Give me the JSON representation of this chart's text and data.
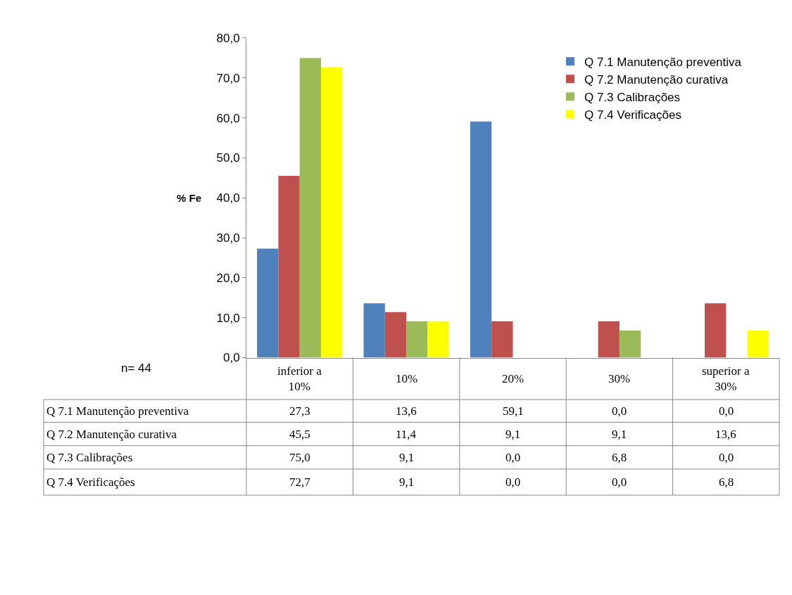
{
  "chart_data": {
    "type": "bar",
    "ylabel": "% Fe",
    "categories": [
      "inferior a 10%",
      "10%",
      "20%",
      "30%",
      "superior a 30%"
    ],
    "series": [
      {
        "name": "Q 7.1 Manutenção preventiva",
        "color": "#4f81bd",
        "values": [
          27.3,
          13.6,
          59.1,
          0.0,
          0.0
        ],
        "value_labels": [
          "27,3",
          "13,6",
          "59,1",
          "0,0",
          "0,0"
        ]
      },
      {
        "name": "Q 7.2 Manutenção curativa",
        "color": "#c0504d",
        "values": [
          45.5,
          11.4,
          9.1,
          9.1,
          13.6
        ],
        "value_labels": [
          "45,5",
          "11,4",
          "9,1",
          "9,1",
          "13,6"
        ]
      },
      {
        "name": "Q 7.3 Calibrações",
        "color": "#9bbb59",
        "values": [
          75.0,
          9.1,
          0.0,
          6.8,
          0.0
        ],
        "value_labels": [
          "75,0",
          "9,1",
          "0,0",
          "6,8",
          "0,0"
        ]
      },
      {
        "name": "Q 7.4 Verificações",
        "color": "#ffff00",
        "values": [
          72.7,
          9.1,
          0.0,
          0.0,
          6.8
        ],
        "value_labels": [
          "72,7",
          "9,1",
          "0,0",
          "0,0",
          "6,8"
        ]
      }
    ],
    "ylim": [
      0,
      80
    ],
    "yticks": [
      {
        "value": 0,
        "label": "0,0"
      },
      {
        "value": 10,
        "label": "10,0"
      },
      {
        "value": 20,
        "label": "20,0"
      },
      {
        "value": 30,
        "label": "30,0"
      },
      {
        "value": 40,
        "label": "40,0"
      },
      {
        "value": 50,
        "label": "50,0"
      },
      {
        "value": 60,
        "label": "60,0"
      },
      {
        "value": 70,
        "label": "70,0"
      },
      {
        "value": 80,
        "label": "80,0"
      }
    ],
    "annotations": [
      "n= 44"
    ],
    "legend": "top right"
  }
}
